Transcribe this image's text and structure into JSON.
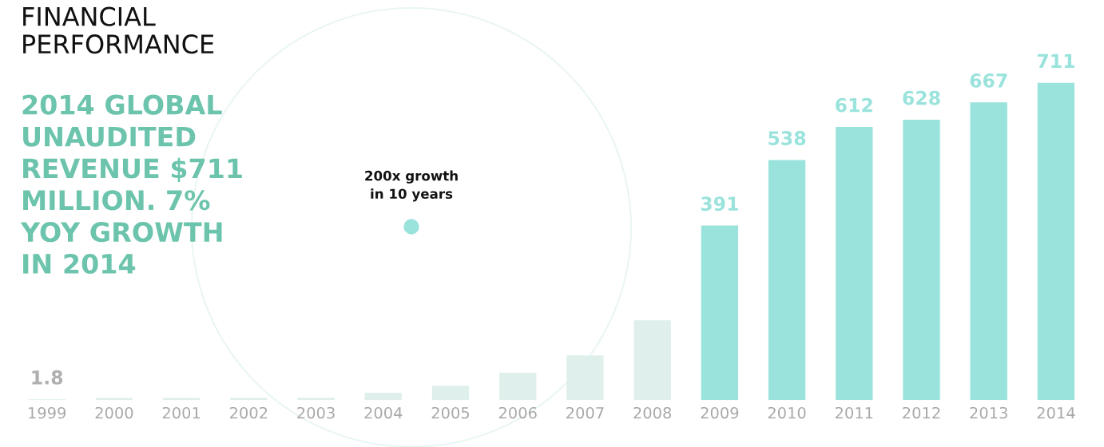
{
  "chart_data": {
    "type": "bar",
    "title": "FINANCIAL\nPERFORMANCE",
    "subtitle": "2014 GLOBAL\nUNAUDITED\nREVENUE $711\nMILLION. 7%\nYOY GROWTH\nIN 2014",
    "annotations": [
      "200x growth\nin 10 years"
    ],
    "categories": [
      "1999",
      "2000",
      "2001",
      "2002",
      "2003",
      "2004",
      "2005",
      "2006",
      "2007",
      "2008",
      "2009",
      "2010",
      "2011",
      "2012",
      "2013",
      "2014"
    ],
    "values": [
      1.8,
      5,
      5,
      5,
      5,
      16,
      32,
      61,
      100,
      179,
      391,
      538,
      612,
      628,
      667,
      711
    ],
    "value_labels": [
      "1.8",
      null,
      null,
      null,
      null,
      null,
      null,
      null,
      null,
      null,
      "391",
      "538",
      "612",
      "628",
      "667",
      "711"
    ],
    "colors": [
      "#dfefeb",
      "#dfefeb",
      "#dfefeb",
      "#dfefeb",
      "#dfefeb",
      "#dfefeb",
      "#dfefeb",
      "#dfefeb",
      "#dfefeb",
      "#dfefeb",
      "#9ae3dc",
      "#9ae3dc",
      "#9ae3dc",
      "#9ae3dc",
      "#9ae3dc",
      "#9ae3dc"
    ],
    "tick_labels": "x",
    "grid": false,
    "legend": false
  }
}
